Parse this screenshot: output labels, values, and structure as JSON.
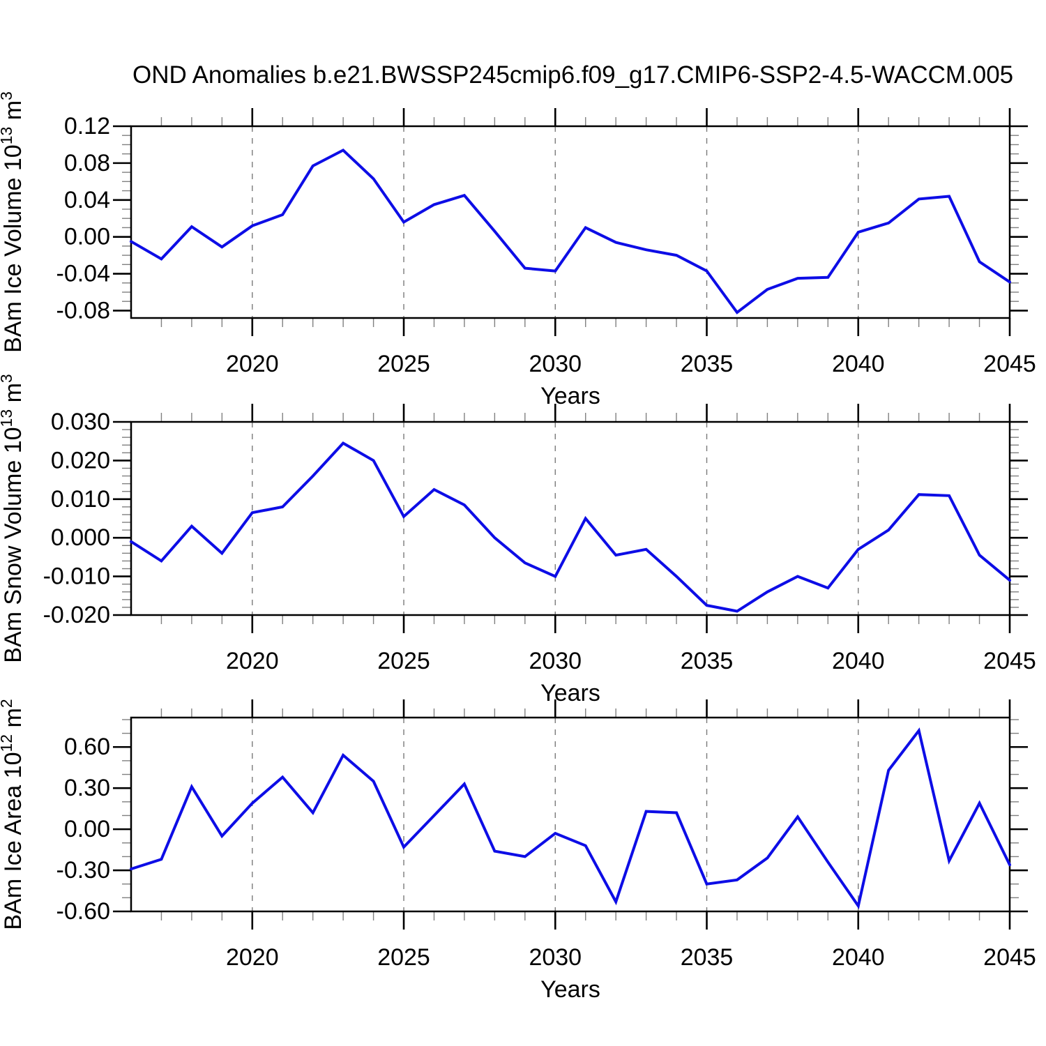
{
  "title": "OND Anomalies b.e21.BWSSP245cmip6.f09_g17.CMIP6-SSP2-4.5-WACCM.005",
  "colors": {
    "line": "#0d0de6",
    "axis": "#000000",
    "major_tick": "#000000",
    "minor_tick": "#808080",
    "grid": "#7a7a7a",
    "text": "#000000",
    "background": "#ffffff"
  },
  "axes": {
    "xlabel": "Years",
    "xlim": [
      2016,
      2045
    ],
    "xticks": [
      2020,
      2025,
      2030,
      2035,
      2040,
      2045
    ],
    "xtick_labels": [
      "2020",
      "2025",
      "2030",
      "2035",
      "2040",
      "2045"
    ],
    "xminor_step": 1,
    "grid_years": [
      2020,
      2025,
      2030,
      2035,
      2040
    ],
    "grid_style": "dashed"
  },
  "chart_data": [
    {
      "type": "line",
      "name": "ice-volume",
      "ylabel": "BAm Ice Volume 10^13 m^3",
      "ylabel_parts": [
        {
          "t": "BAm Ice Volume 10"
        },
        {
          "t": "13",
          "sup": true
        },
        {
          "t": " m"
        },
        {
          "t": "3",
          "sup": true
        }
      ],
      "x": [
        2016,
        2017,
        2018,
        2019,
        2020,
        2021,
        2022,
        2023,
        2024,
        2025,
        2026,
        2027,
        2028,
        2029,
        2030,
        2031,
        2032,
        2033,
        2034,
        2035,
        2036,
        2037,
        2038,
        2039,
        2040,
        2041,
        2042,
        2043,
        2044,
        2045
      ],
      "values": [
        -0.005,
        -0.024,
        0.011,
        -0.011,
        0.012,
        0.024,
        0.077,
        0.094,
        0.063,
        0.016,
        0.035,
        0.045,
        0.006,
        -0.034,
        -0.037,
        0.01,
        -0.006,
        -0.014,
        -0.02,
        -0.037,
        -0.082,
        -0.057,
        -0.045,
        -0.044,
        0.005,
        0.015,
        0.041,
        0.044,
        -0.027,
        -0.049
      ],
      "ylim": [
        -0.088,
        0.12
      ],
      "yticks": [
        0.12,
        0.08,
        0.04,
        0.0,
        -0.04,
        -0.08
      ],
      "ytick_labels": [
        "0.12",
        "0.08",
        "0.04",
        "0.00",
        "-0.04",
        "-0.08"
      ],
      "yminor_step": 0.01
    },
    {
      "type": "line",
      "name": "snow-volume",
      "ylabel": "BAm Snow Volume 10^13 m^3",
      "ylabel_parts": [
        {
          "t": "BAm Snow Volume 10"
        },
        {
          "t": "13",
          "sup": true
        },
        {
          "t": " m"
        },
        {
          "t": "3",
          "sup": true
        }
      ],
      "x": [
        2016,
        2017,
        2018,
        2019,
        2020,
        2021,
        2022,
        2023,
        2024,
        2025,
        2026,
        2027,
        2028,
        2029,
        2030,
        2031,
        2032,
        2033,
        2034,
        2035,
        2036,
        2037,
        2038,
        2039,
        2040,
        2041,
        2042,
        2043,
        2044,
        2045
      ],
      "values": [
        -0.001,
        -0.006,
        0.003,
        -0.004,
        0.0065,
        0.008,
        0.016,
        0.0245,
        0.02,
        0.0055,
        0.0125,
        0.0085,
        0.0,
        -0.0065,
        -0.01,
        0.005,
        -0.0045,
        -0.003,
        -0.01,
        -0.0175,
        -0.019,
        -0.014,
        -0.01,
        -0.013,
        -0.003,
        0.002,
        0.0112,
        0.0109,
        -0.0045,
        -0.011
      ],
      "ylim": [
        -0.02,
        0.03
      ],
      "yticks": [
        0.03,
        0.02,
        0.01,
        0.0,
        -0.01,
        -0.02
      ],
      "ytick_labels": [
        "0.030",
        "0.020",
        "0.010",
        "0.000",
        "-0.010",
        "-0.020"
      ],
      "yminor_step": 0.002
    },
    {
      "type": "line",
      "name": "ice-area",
      "ylabel": "BAm Ice Area 10^12 m^2",
      "ylabel_parts": [
        {
          "t": "BAm Ice Area 10"
        },
        {
          "t": "12",
          "sup": true
        },
        {
          "t": " m"
        },
        {
          "t": "2",
          "sup": true
        }
      ],
      "x": [
        2016,
        2017,
        2018,
        2019,
        2020,
        2021,
        2022,
        2023,
        2024,
        2025,
        2026,
        2027,
        2028,
        2029,
        2030,
        2031,
        2032,
        2033,
        2034,
        2035,
        2036,
        2037,
        2038,
        2039,
        2040,
        2041,
        2042,
        2043,
        2044,
        2045
      ],
      "values": [
        -0.29,
        -0.22,
        0.31,
        -0.05,
        0.19,
        0.38,
        0.12,
        0.54,
        0.35,
        -0.13,
        0.1,
        0.33,
        -0.16,
        -0.2,
        -0.03,
        -0.12,
        -0.53,
        0.13,
        0.12,
        -0.4,
        -0.37,
        -0.21,
        0.09,
        -0.24,
        -0.56,
        0.43,
        0.72,
        -0.23,
        0.19,
        -0.26
      ],
      "ylim": [
        -0.6,
        0.815
      ],
      "yticks": [
        0.6,
        0.3,
        0.0,
        -0.3,
        -0.6
      ],
      "ytick_labels": [
        "0.60",
        "0.30",
        "0.00",
        "-0.30",
        "-0.60"
      ],
      "yminor_step": 0.1
    }
  ]
}
